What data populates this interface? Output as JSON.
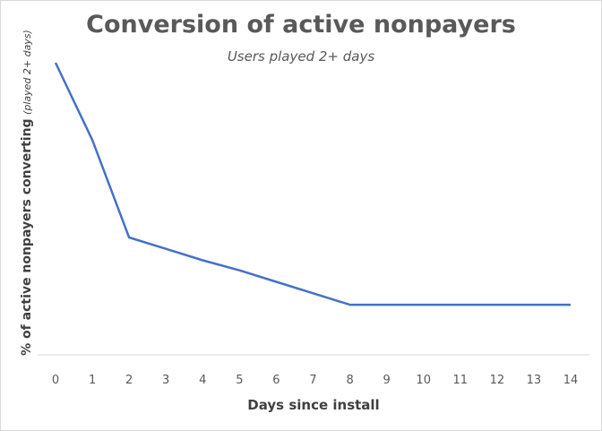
{
  "chart_data": {
    "type": "line",
    "title": "Conversion of active nonpayers",
    "subtitle": "Users played 2+ days",
    "xlabel": "Days since install",
    "ylabel": "% of active nonpayers converting",
    "ylabel_note": "(played 2+ days)",
    "x": [
      0,
      1,
      2,
      3,
      4,
      5,
      6,
      7,
      8,
      9,
      10,
      11,
      12,
      13,
      14
    ],
    "series": [
      {
        "values": [
          1.0,
          0.73,
          0.39,
          0.35,
          0.31,
          0.275,
          0.235,
          0.195,
          0.155,
          0.155,
          0.155,
          0.155,
          0.155,
          0.155,
          0.155
        ],
        "color": "#4472c4"
      }
    ],
    "ylim": [
      -0.02,
      1.0
    ],
    "y_tick_labels_shown": false,
    "grid": false,
    "legend": "none"
  }
}
